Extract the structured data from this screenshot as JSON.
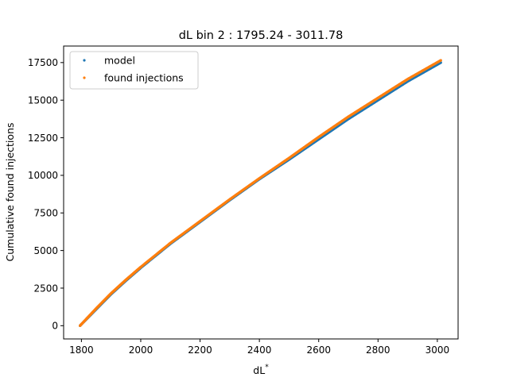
{
  "chart_data": {
    "type": "scatter",
    "title": "dL bin 2 : 1795.24 - 3011.78",
    "xlabel": "dL",
    "xlabel_superscript": "*",
    "ylabel": "Cumulative found injections",
    "xlim": [
      1740,
      3070
    ],
    "ylim": [
      -880,
      18600
    ],
    "xticks": [
      1800,
      2000,
      2200,
      2400,
      2600,
      2800,
      3000
    ],
    "yticks": [
      0,
      2500,
      5000,
      7500,
      10000,
      12500,
      15000,
      17500
    ],
    "xtick_labels": [
      "1800",
      "2000",
      "2200",
      "2400",
      "2600",
      "2800",
      "3000"
    ],
    "ytick_labels": [
      "0",
      "2500",
      "5000",
      "7500",
      "10000",
      "12500",
      "15000",
      "17500"
    ],
    "grid": false,
    "legend_position": "top-left",
    "series": [
      {
        "name": "model",
        "color": "#1f77b4",
        "x": [
          1795.24,
          1850,
          1900,
          1950,
          2000,
          2100,
          2200,
          2300,
          2400,
          2500,
          2600,
          2700,
          2800,
          2900,
          3011.78
        ],
        "y": [
          0,
          1100,
          2100,
          3000,
          3850,
          5450,
          6900,
          8350,
          9750,
          11050,
          12400,
          13750,
          15000,
          16250,
          17500
        ]
      },
      {
        "name": "found injections",
        "color": "#ff7f0e",
        "x": [
          1795.24,
          1850,
          1900,
          1950,
          2000,
          2100,
          2200,
          2300,
          2400,
          2500,
          2600,
          2700,
          2800,
          2900,
          3011.78
        ],
        "y": [
          0,
          1150,
          2150,
          3050,
          3900,
          5500,
          6950,
          8400,
          9800,
          11150,
          12550,
          13900,
          15150,
          16400,
          17650
        ]
      }
    ]
  }
}
